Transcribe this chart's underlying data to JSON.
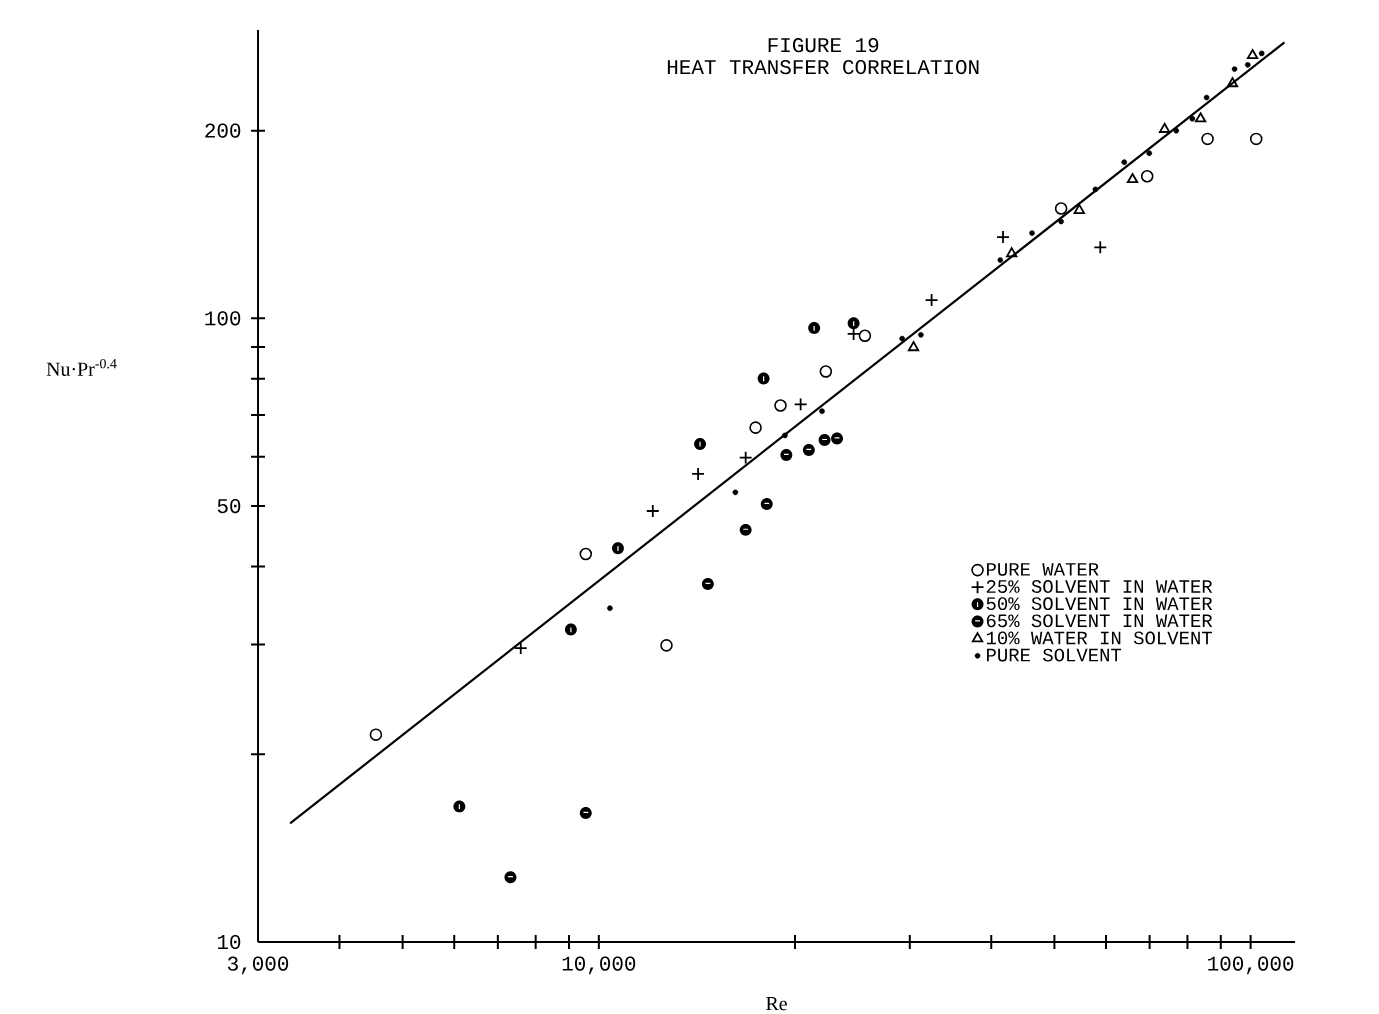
{
  "chart_data": {
    "type": "scatter",
    "title": "FIGURE 19",
    "subtitle": "HEAT TRANSFER CORRELATION",
    "xlabel": "Re",
    "ylabel": "Nu·Pr$^{-0.4}$",
    "log": "xy",
    "xlim": [
      3000,
      117000
    ],
    "ylim": [
      10,
      290
    ],
    "xticks": [
      {
        "value": 3000,
        "label": "3,000"
      },
      {
        "value": 4000,
        "label": null
      },
      {
        "value": 5000,
        "label": null
      },
      {
        "value": 6000,
        "label": null
      },
      {
        "value": 7000,
        "label": null
      },
      {
        "value": 8000,
        "label": null
      },
      {
        "value": 9000,
        "label": null
      },
      {
        "value": 10000,
        "label": "10,000"
      },
      {
        "value": 20000,
        "label": null
      },
      {
        "value": 30000,
        "label": null
      },
      {
        "value": 40000,
        "label": null
      },
      {
        "value": 50000,
        "label": null
      },
      {
        "value": 60000,
        "label": null
      },
      {
        "value": 70000,
        "label": null
      },
      {
        "value": 80000,
        "label": null
      },
      {
        "value": 90000,
        "label": null
      },
      {
        "value": 100000,
        "label": "100,000"
      }
    ],
    "yticks": [
      10,
      {
        "value": 20,
        "label": null
      },
      {
        "value": 30,
        "label": null
      },
      {
        "value": 40,
        "label": null
      },
      50,
      {
        "value": 60,
        "label": null
      },
      {
        "value": 70,
        "label": null
      },
      {
        "value": 80,
        "label": null
      },
      {
        "value": 90,
        "label": null
      },
      100,
      200
    ],
    "legend": "right",
    "series": [
      {
        "name": "PURE WATER",
        "color": "#000000",
        "marker": "circle",
        "x": [
          4550,
          9550,
          12700,
          17400,
          19000,
          22300,
          25600,
          51200,
          69400,
          85900,
          102000
        ],
        "values": [
          21.5,
          41.9,
          29.9,
          66.8,
          72.5,
          82.2,
          93.8,
          150,
          169,
          194,
          194
        ]
      },
      {
        "name": "25% SOLVENT IN WATER",
        "color": "#000000",
        "marker": "cross",
        "x": [
          7590,
          12100,
          14200,
          16800,
          20400,
          24600,
          32400,
          41700,
          58800
        ],
        "values": [
          29.6,
          49.1,
          56.3,
          59.8,
          72.8,
          94.4,
          107,
          135,
          130
        ]
      },
      {
        "name": "50% SOLVENT IN WATER",
        "color": "#000000",
        "x": [
          6110,
          9060,
          10700,
          14300,
          17900,
          21400,
          24600
        ],
        "values": [
          16.5,
          31.7,
          42.8,
          62.9,
          80.1,
          96.5,
          98.2
        ]
      },
      {
        "name": "65% SOLVENT IN WATER",
        "color": "#000000",
        "x": [
          7320,
          9550,
          14700,
          16800,
          18100,
          19400,
          21000,
          22200,
          23200
        ],
        "values": [
          12.7,
          16.1,
          37.5,
          45.8,
          50.4,
          60.4,
          61.5,
          63.8,
          64.2
        ]
      },
      {
        "name": "10% WATER IN SOLVENT",
        "color": "#000000",
        "marker": "triangle",
        "x": [
          30400,
          43000,
          54600,
          65900,
          73800,
          83800,
          93800,
          100700
        ],
        "values": [
          89.8,
          127,
          149,
          167,
          201,
          209,
          238,
          264
        ]
      },
      {
        "name": "PURE SOLVENT",
        "color": "#000000",
        "marker": "circle",
        "x": [
          10400,
          16200,
          19300,
          22000,
          29200,
          31200,
          41300,
          46200,
          51200,
          57800,
          64000,
          69900,
          76900,
          81400,
          85600,
          94500,
          99000,
          104000
        ],
        "values": [
          34.3,
          52.6,
          64.9,
          71,
          92.8,
          94.1,
          124,
          137,
          143,
          161,
          178,
          184,
          200,
          209,
          226,
          251,
          255,
          266
        ]
      },
      {
        "type": "line",
        "color": "#000000",
        "marker": "none",
        "x": [
          3360,
          112700
        ],
        "values": [
          15.5,
          277
        ]
      }
    ]
  }
}
